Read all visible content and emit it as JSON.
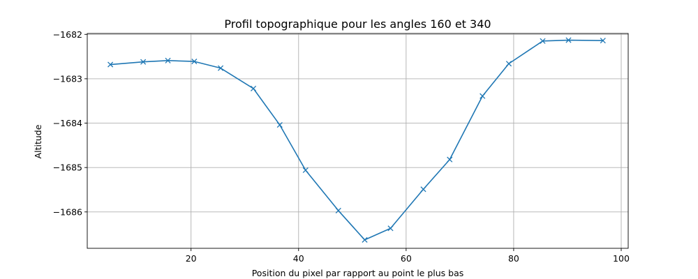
{
  "chart_data": {
    "type": "line",
    "title": "Profil topographique pour les angles 160 et 340",
    "xlabel": "Position du pixel par rapport au point le plus bas",
    "ylabel": "Altitude",
    "xlim": [
      0.7,
      101.3
    ],
    "ylim": [
      -1686.82,
      -1681.98
    ],
    "xticks": [
      20,
      40,
      60,
      80,
      100
    ],
    "xtick_labels": [
      "20",
      "40",
      "60",
      "80",
      "100"
    ],
    "yticks": [
      -1682,
      -1683,
      -1684,
      -1685,
      -1686
    ],
    "ytick_labels": [
      "−1682",
      "−1683",
      "−1684",
      "−1685",
      "−1686"
    ],
    "grid": true,
    "series": [
      {
        "color": "#1f77b4",
        "marker": "x",
        "x": [
          5.0,
          11.1,
          15.7,
          20.6,
          25.5,
          31.6,
          36.5,
          41.3,
          47.4,
          52.3,
          57.1,
          63.2,
          68.1,
          74.2,
          79.1,
          85.4,
          90.2,
          96.6
        ],
        "y": [
          -1682.68,
          -1682.62,
          -1682.59,
          -1682.61,
          -1682.76,
          -1683.22,
          -1684.04,
          -1685.06,
          -1685.97,
          -1686.63,
          -1686.37,
          -1685.49,
          -1684.82,
          -1683.39,
          -1682.66,
          -1682.15,
          -1682.13,
          -1682.14
        ]
      }
    ]
  }
}
